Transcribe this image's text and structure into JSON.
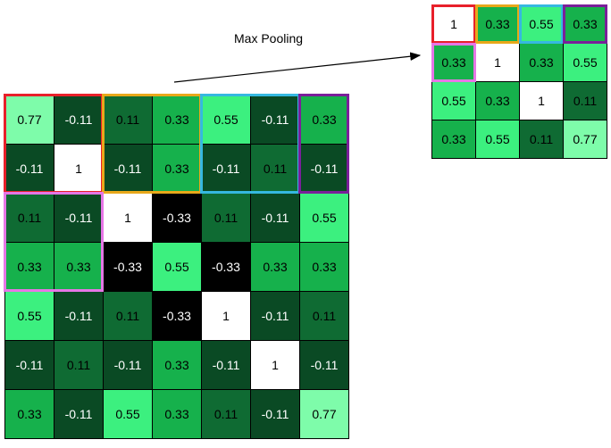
{
  "title": "Max Pooling",
  "colors": {
    "white": "#ffffff",
    "black": "#000000",
    "dark": "#0a4a24",
    "mid": "#0f6b33",
    "green": "#16b14c",
    "light": "#3cf07f",
    "pale": "#7efcaa",
    "red": "#e8202a",
    "orange": "#e8a81a",
    "cyan": "#35b8e0",
    "purple": "#7a1f9a",
    "pink": "#e676e6"
  },
  "input_grid": [
    [
      "0.77",
      "-0.11",
      "0.11",
      "0.33",
      "0.55",
      "-0.11",
      "0.33"
    ],
    [
      "-0.11",
      "1",
      "-0.11",
      "0.33",
      "-0.11",
      "0.11",
      "-0.11"
    ],
    [
      "0.11",
      "-0.11",
      "1",
      "-0.33",
      "0.11",
      "-0.11",
      "0.55"
    ],
    [
      "0.33",
      "0.33",
      "-0.33",
      "0.55",
      "-0.33",
      "0.33",
      "0.33"
    ],
    [
      "0.55",
      "-0.11",
      "0.11",
      "-0.33",
      "1",
      "-0.11",
      "0.11"
    ],
    [
      "-0.11",
      "0.11",
      "-0.11",
      "0.33",
      "-0.11",
      "1",
      "-0.11"
    ],
    [
      "0.33",
      "-0.11",
      "0.55",
      "0.33",
      "0.11",
      "-0.11",
      "0.77"
    ]
  ],
  "output_grid": [
    [
      "1",
      "0.33",
      "0.55",
      "0.33"
    ],
    [
      "0.33",
      "1",
      "0.33",
      "0.55"
    ],
    [
      "0.55",
      "0.33",
      "1",
      "0.11"
    ],
    [
      "0.33",
      "0.55",
      "0.11",
      "0.77"
    ]
  ]
}
